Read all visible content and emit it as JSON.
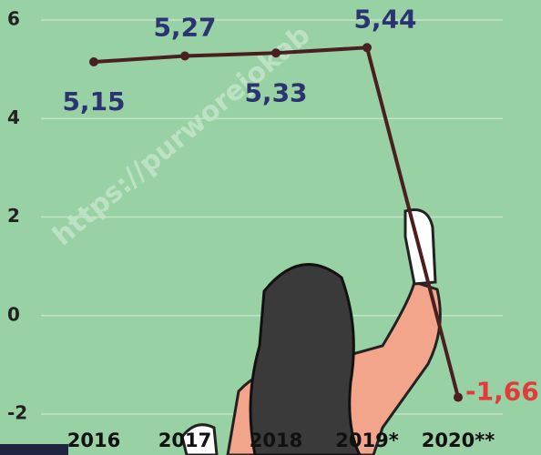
{
  "chart_data": {
    "type": "line",
    "watermark": "https://purworejokab",
    "categories": [
      "2016",
      "2017",
      "2018",
      "2019*",
      "2020**"
    ],
    "values": [
      5.15,
      5.27,
      5.33,
      5.44,
      -1.66
    ],
    "value_labels": [
      "5,15",
      "5,27",
      "5,33",
      "5,44",
      "-1,66"
    ],
    "color": "#4a1f1f",
    "ylim": [
      -2,
      6
    ],
    "yticks": [
      -2,
      0,
      2,
      4,
      6
    ],
    "grid": true
  }
}
